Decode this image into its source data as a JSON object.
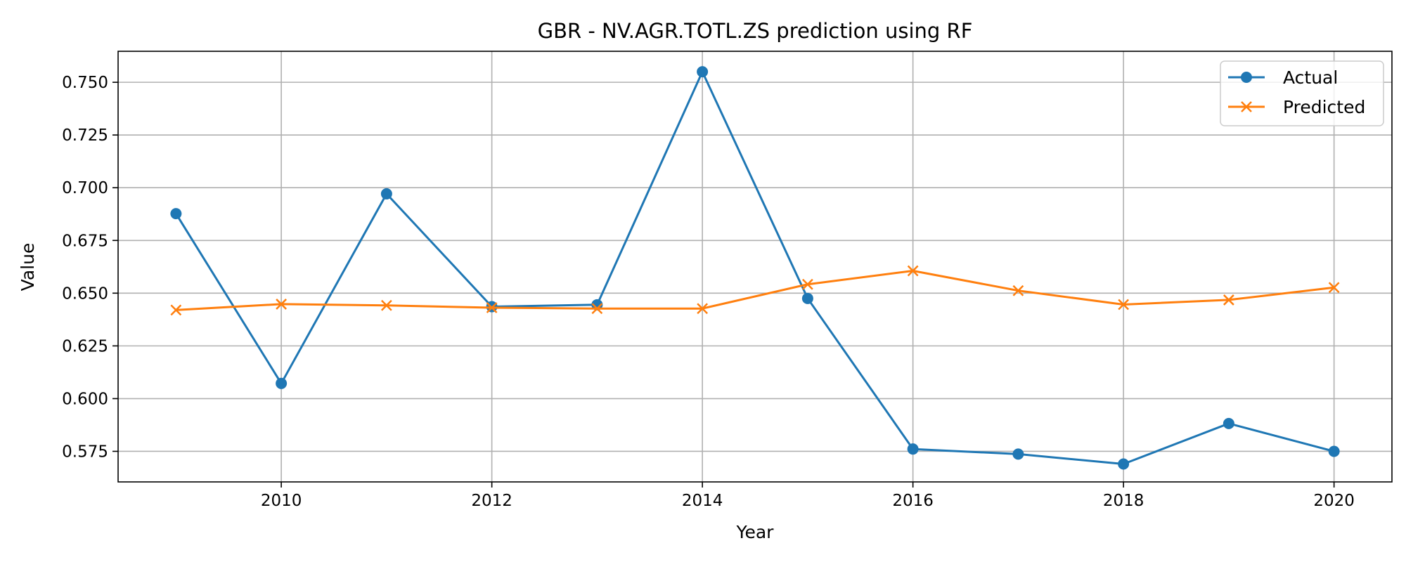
{
  "chart_data": {
    "type": "line",
    "title": "GBR - NV.AGR.TOTL.ZS prediction using RF",
    "xlabel": "Year",
    "ylabel": "Value",
    "x": [
      2009,
      2010,
      2011,
      2012,
      2013,
      2014,
      2015,
      2016,
      2017,
      2018,
      2019,
      2020
    ],
    "xlim": [
      2008.45,
      2020.55
    ],
    "ylim": [
      0.5605,
      0.7647
    ],
    "xticks": [
      2010,
      2012,
      2014,
      2016,
      2018,
      2020
    ],
    "yticks": [
      0.575,
      0.6,
      0.625,
      0.65,
      0.675,
      0.7,
      0.725,
      0.75
    ],
    "ytick_labels": [
      "0.575",
      "0.600",
      "0.625",
      "0.650",
      "0.675",
      "0.700",
      "0.725",
      "0.750"
    ],
    "grid": true,
    "legend_position": "top-right",
    "series": [
      {
        "name": "Actual",
        "marker": "circle",
        "color": "#1f77b4",
        "values": [
          0.6877,
          0.6072,
          0.6971,
          0.6436,
          0.6445,
          0.755,
          0.6475,
          0.5761,
          0.5737,
          0.569,
          0.5882,
          0.575
        ]
      },
      {
        "name": "Predicted",
        "marker": "x",
        "color": "#ff7f0e",
        "values": [
          0.642,
          0.6448,
          0.6442,
          0.6431,
          0.6427,
          0.6427,
          0.6542,
          0.6606,
          0.6512,
          0.6446,
          0.6468,
          0.6527
        ]
      }
    ]
  }
}
